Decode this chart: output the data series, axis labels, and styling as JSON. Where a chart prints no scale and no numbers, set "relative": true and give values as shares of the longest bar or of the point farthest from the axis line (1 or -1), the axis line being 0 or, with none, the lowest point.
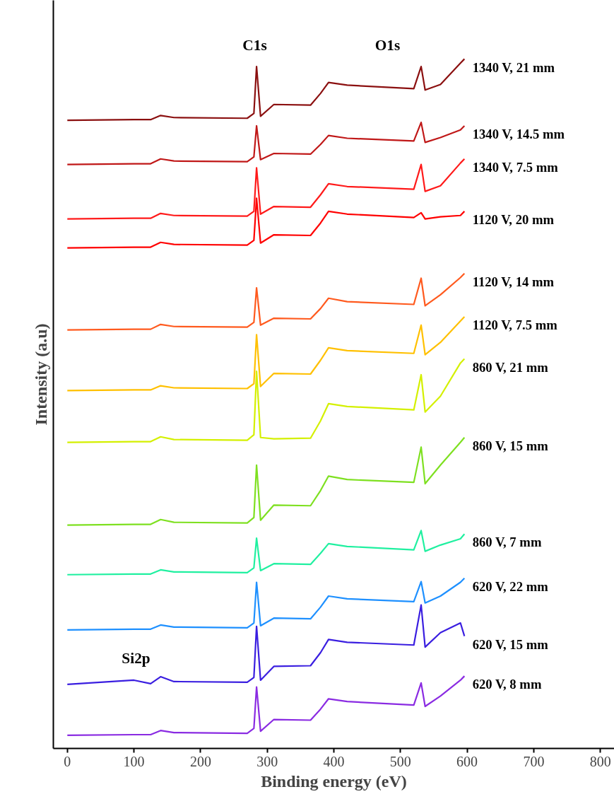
{
  "chart_data": {
    "type": "line",
    "relative": true,
    "xlabel": "Binding energy (eV)",
    "ylabel": "Intensity (a.u)",
    "xlim": [
      -21,
      821
    ],
    "xticks": [
      0,
      100,
      200,
      300,
      400,
      500,
      600,
      700,
      800
    ],
    "grid": false,
    "legend": false,
    "marker": "none",
    "line_style": "solid",
    "x": [
      0,
      100,
      125,
      140,
      160,
      270,
      280,
      284,
      290,
      310,
      365,
      380,
      392,
      420,
      520,
      531,
      537,
      560,
      590,
      596
    ],
    "annotations": [
      "C1s",
      "O1s",
      "Si2p"
    ],
    "series": [
      {
        "name": "1340 V, 21 mm",
        "color": "#8b1010",
        "values": [
          0.911,
          0.912,
          0.912,
          0.918,
          0.915,
          0.914,
          0.921,
          0.989,
          0.917,
          0.934,
          0.933,
          0.95,
          0.966,
          0.962,
          0.957,
          0.989,
          0.955,
          0.963,
          0.994,
          1.0
        ]
      },
      {
        "name": "1340 V, 14.5 mm",
        "color": "#c01818",
        "values": [
          0.847,
          0.848,
          0.848,
          0.855,
          0.852,
          0.851,
          0.858,
          0.903,
          0.854,
          0.863,
          0.862,
          0.876,
          0.889,
          0.885,
          0.881,
          0.908,
          0.879,
          0.886,
          0.897,
          0.903
        ]
      },
      {
        "name": "1340 V, 7.5 mm",
        "color": "#ff1a1a",
        "values": [
          0.768,
          0.769,
          0.769,
          0.776,
          0.773,
          0.772,
          0.779,
          0.842,
          0.775,
          0.786,
          0.785,
          0.803,
          0.819,
          0.815,
          0.811,
          0.847,
          0.808,
          0.816,
          0.849,
          0.855
        ]
      },
      {
        "name": "1120 V, 20 mm",
        "color": "#ff0000",
        "values": [
          0.726,
          0.727,
          0.727,
          0.734,
          0.731,
          0.73,
          0.737,
          0.798,
          0.733,
          0.745,
          0.744,
          0.762,
          0.779,
          0.775,
          0.77,
          0.777,
          0.768,
          0.771,
          0.773,
          0.779
        ]
      },
      {
        "name": "1120 V, 14 mm",
        "color": "#ff5a1e",
        "values": [
          0.607,
          0.608,
          0.608,
          0.615,
          0.612,
          0.611,
          0.618,
          0.668,
          0.614,
          0.624,
          0.623,
          0.638,
          0.653,
          0.648,
          0.644,
          0.682,
          0.642,
          0.658,
          0.683,
          0.689
        ]
      },
      {
        "name": "1120 V, 7.5 mm",
        "color": "#ffc000",
        "values": [
          0.519,
          0.52,
          0.52,
          0.526,
          0.523,
          0.522,
          0.529,
          0.6,
          0.525,
          0.544,
          0.543,
          0.563,
          0.581,
          0.577,
          0.573,
          0.614,
          0.571,
          0.589,
          0.62,
          0.626
        ]
      },
      {
        "name": "860 V, 21 mm",
        "color": "#d4f000",
        "values": [
          0.444,
          0.445,
          0.445,
          0.452,
          0.448,
          0.447,
          0.455,
          0.547,
          0.451,
          0.449,
          0.45,
          0.475,
          0.5,
          0.496,
          0.491,
          0.542,
          0.488,
          0.511,
          0.559,
          0.565
        ]
      },
      {
        "name": "860 V, 15 mm",
        "color": "#7ee020",
        "values": [
          0.324,
          0.325,
          0.325,
          0.332,
          0.328,
          0.327,
          0.335,
          0.411,
          0.331,
          0.353,
          0.352,
          0.374,
          0.395,
          0.39,
          0.386,
          0.437,
          0.384,
          0.411,
          0.444,
          0.451
        ]
      },
      {
        "name": "860 V, 7 mm",
        "color": "#20f0a0",
        "values": [
          0.252,
          0.253,
          0.253,
          0.259,
          0.256,
          0.255,
          0.262,
          0.305,
          0.258,
          0.268,
          0.267,
          0.283,
          0.297,
          0.293,
          0.288,
          0.316,
          0.286,
          0.295,
          0.304,
          0.311
        ]
      },
      {
        "name": "620 V, 22 mm",
        "color": "#1e90ff",
        "values": [
          0.172,
          0.173,
          0.173,
          0.179,
          0.176,
          0.175,
          0.182,
          0.241,
          0.178,
          0.189,
          0.188,
          0.205,
          0.221,
          0.217,
          0.213,
          0.242,
          0.211,
          0.221,
          0.241,
          0.247
        ]
      },
      {
        "name": "620 V, 15 mm",
        "color": "#3a1ee0",
        "values": [
          0.093,
          0.099,
          0.094,
          0.104,
          0.097,
          0.096,
          0.103,
          0.177,
          0.099,
          0.119,
          0.12,
          0.139,
          0.158,
          0.154,
          0.15,
          0.208,
          0.147,
          0.168,
          0.182,
          0.163
        ]
      },
      {
        "name": "620 V, 8 mm",
        "color": "#8a2be2",
        "values": [
          0.019,
          0.02,
          0.02,
          0.026,
          0.023,
          0.022,
          0.029,
          0.089,
          0.025,
          0.042,
          0.041,
          0.057,
          0.072,
          0.068,
          0.063,
          0.095,
          0.061,
          0.076,
          0.099,
          0.105
        ]
      }
    ]
  }
}
